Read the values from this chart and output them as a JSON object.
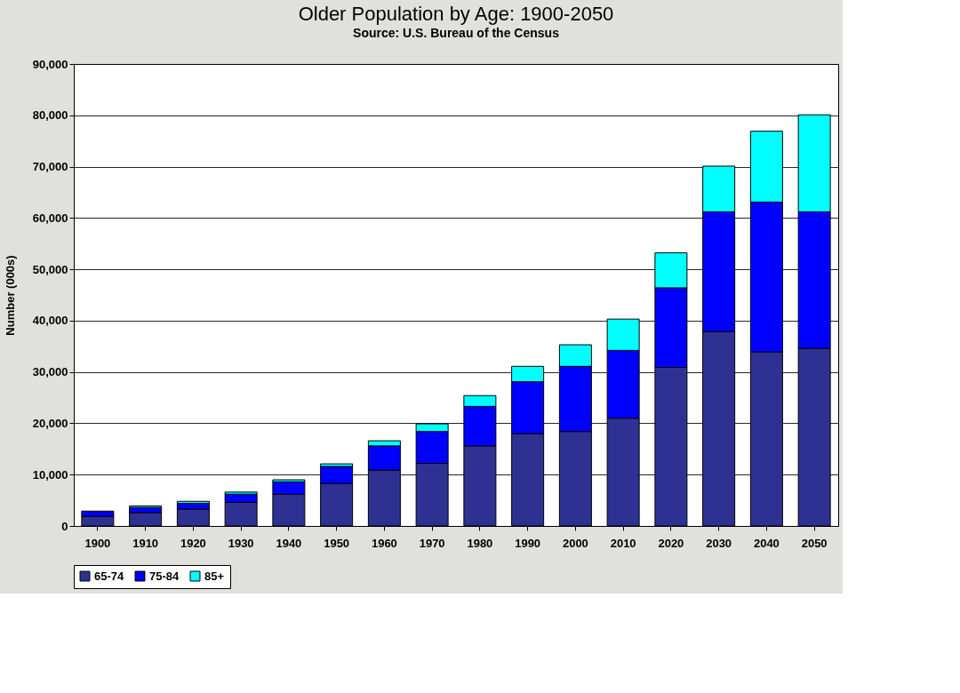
{
  "chart_data": {
    "type": "bar",
    "stacked": true,
    "title": "Older Population by Age: 1900-2050",
    "subtitle": "Source: U.S. Bureau of the Census",
    "ylabel": "Number (000s)",
    "categories": [
      "1900",
      "1910",
      "1920",
      "1930",
      "1940",
      "1950",
      "1960",
      "1970",
      "1980",
      "1990",
      "2000",
      "2010",
      "2020",
      "2030",
      "2040",
      "2050"
    ],
    "series": [
      {
        "name": "65-74",
        "color": "#2e3192",
        "values": [
          1900,
          2600,
          3300,
          4600,
          6200,
          8300,
          10900,
          12200,
          15600,
          18000,
          18400,
          21000,
          30900,
          37900,
          33900,
          34600
        ]
      },
      {
        "name": "75-84",
        "color": "#0000ff",
        "values": [
          1000,
          1000,
          1100,
          1600,
          2400,
          3300,
          4700,
          6200,
          7700,
          10100,
          12700,
          13200,
          15500,
          23300,
          29200,
          26600
        ]
      },
      {
        "name": "85+",
        "color": "#00ffff",
        "values": [
          null,
          300,
          400,
          400,
          400,
          500,
          1000,
          1500,
          2100,
          3000,
          4200,
          6100,
          6800,
          8900,
          13800,
          18900
        ]
      }
    ],
    "ylim": [
      0,
      90000
    ],
    "yticks": [
      0,
      {
        "value": 10000,
        "label": "10,000"
      },
      {
        "value": 20000,
        "label": "20,000"
      },
      {
        "value": 30000,
        "label": "30,000"
      },
      {
        "value": 40000,
        "label": "40,000"
      },
      {
        "value": 50000,
        "label": "50,000"
      },
      {
        "value": 60000,
        "label": "60,000"
      },
      {
        "value": 70000,
        "label": "70,000"
      },
      {
        "value": 80000,
        "label": "80,000"
      },
      {
        "value": 90000,
        "label": "90,000"
      }
    ],
    "grid": "y",
    "legend": "bottom"
  }
}
